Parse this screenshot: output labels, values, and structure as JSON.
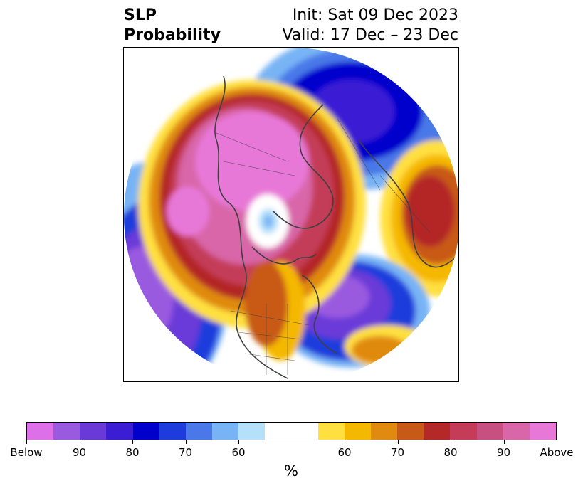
{
  "title": {
    "left_line1": "SLP",
    "left_line2": "Probability",
    "right_line1": "Init: Sat 09 Dec 2023",
    "right_line2": "Valid: 17 Dec – 23 Dec"
  },
  "colorbar": {
    "colors": [
      "#dd70e8",
      "#9a5ae0",
      "#6a3ad8",
      "#3b1ed4",
      "#0000cd",
      "#1e3cdc",
      "#4a78e8",
      "#78b4f5",
      "#b4e0fa",
      "#ffffff",
      "#ffe040",
      "#f5b800",
      "#e08a10",
      "#c85a18",
      "#b42828",
      "#c43c58",
      "#c85080",
      "#d866a8",
      "#e878d8"
    ],
    "tick_labels": [
      "Below",
      "90",
      "80",
      "70",
      "60",
      "60",
      "70",
      "80",
      "90",
      "Above"
    ],
    "unit": "%"
  },
  "map": {
    "projection": "north-polar-stereographic",
    "regions": [
      {
        "name": "above-normal-pressure-arctic-north-america",
        "category": "Above",
        "color": "#e878d8"
      },
      {
        "name": "above-normal-pressure-europe",
        "category": "80",
        "color": "#b42828"
      },
      {
        "name": "below-normal-pressure-siberia",
        "category": "80",
        "color": "#0000cd"
      },
      {
        "name": "below-normal-pressure-north-atlantic",
        "category": "90",
        "color": "#9a5ae0"
      },
      {
        "name": "below-normal-pressure-north-pacific",
        "category": "90",
        "color": "#9a5ae0"
      },
      {
        "name": "below-normal-pressure-baffin",
        "category": "60",
        "color": "#78b4f5"
      }
    ]
  }
}
